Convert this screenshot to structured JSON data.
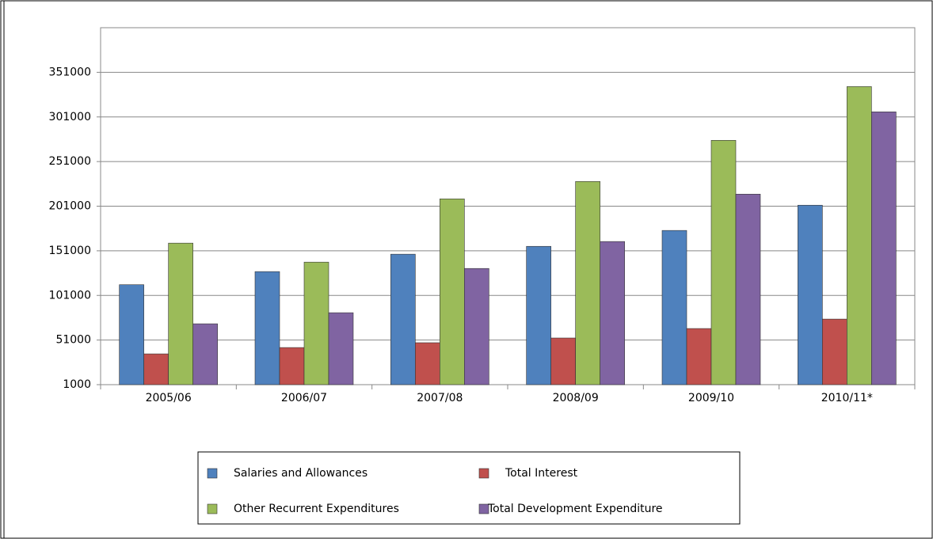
{
  "chart_data": {
    "type": "bar",
    "categories": [
      "2005/06",
      "2006/07",
      "2007/08",
      "2008/09",
      "2009/10",
      "2010/11*"
    ],
    "series": [
      {
        "name": "Salaries and Allowances",
        "color": "#4f81bd",
        "values": [
          113000,
          127700,
          147200,
          156000,
          173800,
          202100
        ]
      },
      {
        "name": "Total Interest",
        "color": "#c0504d",
        "values": [
          35500,
          42600,
          48000,
          53300,
          63900,
          74500
        ]
      },
      {
        "name": "Other Recurrent Expenditures",
        "color": "#9bbb59",
        "values": [
          159600,
          138300,
          209200,
          228700,
          274800,
          335000
        ]
      },
      {
        "name": "Total Development Expenditure",
        "color": "#8064a2",
        "values": [
          69200,
          81600,
          131200,
          161400,
          214500,
          306700
        ]
      }
    ],
    "ylim": [
      1000,
      401000
    ],
    "yticks": [
      1000,
      51000,
      101000,
      151000,
      201000,
      251000,
      301000,
      351000
    ],
    "grid": true,
    "legend": "bottom"
  }
}
